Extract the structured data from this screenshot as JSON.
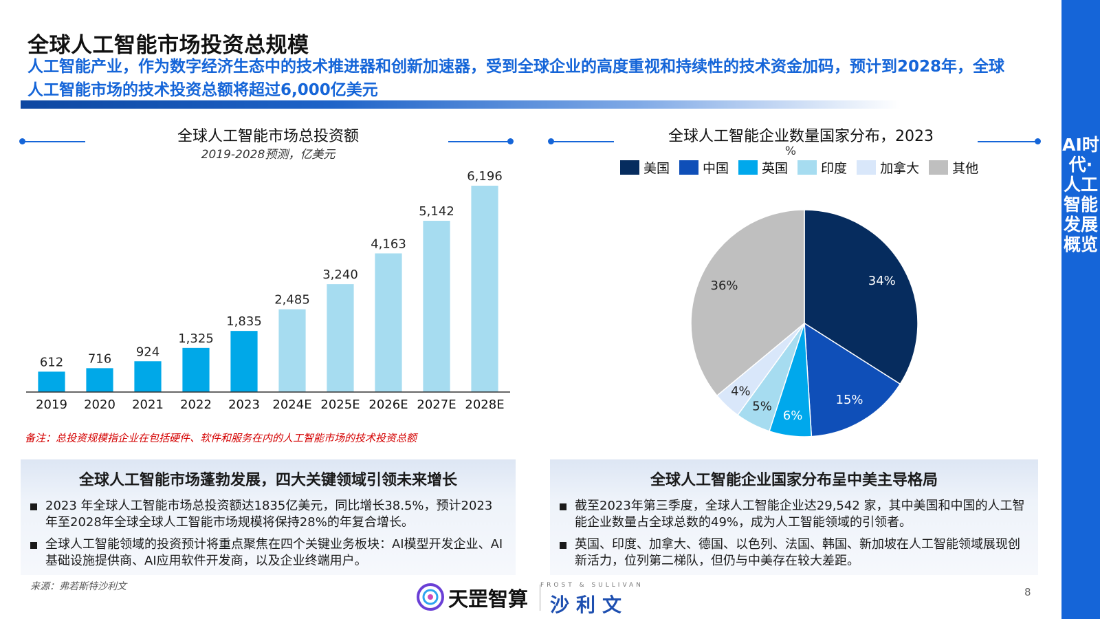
{
  "header": {
    "title": "全球人工智能市场投资总规模",
    "subtitle": "人工智能产业，作为数字经济生态中的技术推进器和创新加速器，受到全球企业的高度重视和持续性的技术资金加码，预计到2028年，全球人工智能市场的技术投资总额将超过6,000亿美元"
  },
  "side_label": "AI时代·人工智能发展概览",
  "bar_chart": {
    "title": "全球人工智能市场总投资额",
    "subtitle": "2019-2028预测，亿美元",
    "note": "备注：总投资规模指企业在包括硬件、软件和服务在内的人工智能市场的技术投资总额"
  },
  "pie_chart": {
    "title": "全球人工智能企业数量国家分布，2023",
    "unit": "%"
  },
  "chart_data": [
    {
      "type": "bar",
      "title": "全球人工智能市场总投资额",
      "subtitle": "2019-2028预测，亿美元",
      "categories": [
        "2019",
        "2020",
        "2021",
        "2022",
        "2023",
        "2024E",
        "2025E",
        "2026E",
        "2027E",
        "2028E"
      ],
      "values": [
        612,
        716,
        924,
        1325,
        1835,
        2485,
        3240,
        4163,
        5142,
        6196
      ],
      "labels": [
        "612",
        "716",
        "924",
        "1,325",
        "1,835",
        "2,485",
        "3,240",
        "4,163",
        "5,142",
        "6,196"
      ],
      "colors": [
        "#00a8e8",
        "#00a8e8",
        "#00a8e8",
        "#00a8e8",
        "#00a8e8",
        "#a6dcf0",
        "#a6dcf0",
        "#a6dcf0",
        "#a6dcf0",
        "#a6dcf0"
      ],
      "ylim": [
        0,
        6196
      ]
    },
    {
      "type": "pie",
      "title": "全球人工智能企业数量国家分布，2023",
      "unit": "%",
      "legend_position": "top",
      "slices": [
        {
          "name": "美国",
          "value": 34,
          "label": "34%",
          "color": "#062c5e"
        },
        {
          "name": "中国",
          "value": 15,
          "label": "15%",
          "color": "#0f4fb8"
        },
        {
          "name": "英国",
          "value": 6,
          "label": "6%",
          "color": "#00a8ec"
        },
        {
          "name": "印度",
          "value": 5,
          "label": "5%",
          "color": "#a6dcf0"
        },
        {
          "name": "加拿大",
          "value": 4,
          "label": "4%",
          "color": "#d9e7fa"
        },
        {
          "name": "其他",
          "value": 36,
          "label": "36%",
          "color": "#bfbfbf"
        }
      ]
    }
  ],
  "panels": {
    "left": {
      "title": "全球人工智能市场蓬勃发展，四大关键领域引领未来增长",
      "bullets": [
        "2023 年全球人工智能市场总投资额达1835亿美元，同比增长38.5%，预计2023年至2028年全球全球人工智能市场规模将保持28%的年复合增长。",
        "全球人工智能领域的投资预计将重点聚焦在四个关键业务板块：AI模型开发企业、AI基础设施提供商、AI应用软件开发商，以及企业终端用户。"
      ]
    },
    "right": {
      "title": "全球人工智能企业国家分布呈中美主导格局",
      "bullets": [
        "截至2023年第三季度，全球人工智能企业达29,542 家，其中美国和中国的人工智能企业数量占全球总数的49%，成为人工智能领域的引领者。",
        "英国、印度、加拿大、德国、以色列、法国、韩国、新加坡在人工智能领域展现创新活力，位列第二梯队，但仍与中美存在较大差距。"
      ]
    }
  },
  "footer": {
    "source": "来源：弗若斯特沙利文",
    "page_number": "8",
    "logo_brand": "天罡智算",
    "logo_partner": "沙利文",
    "logo_partner_en": "FROST & SULLIVAN"
  }
}
